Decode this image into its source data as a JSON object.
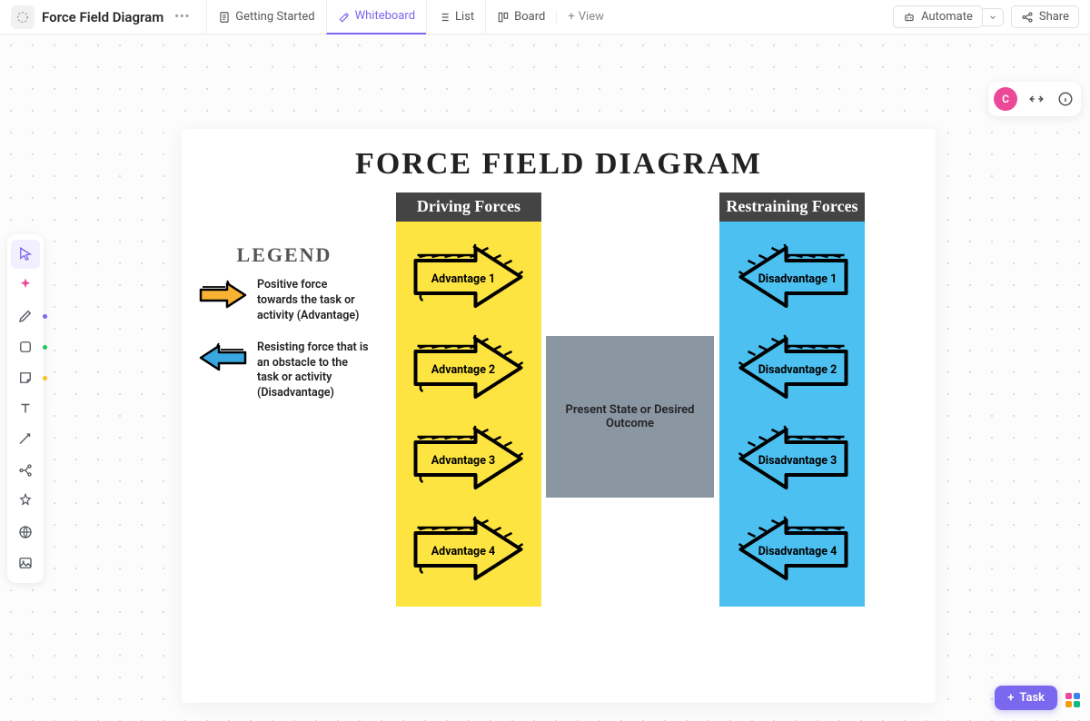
{
  "header": {
    "doc_title": "Force Field Diagram",
    "tabs": {
      "getting_started": "Getting Started",
      "whiteboard": "Whiteboard",
      "list": "List",
      "board": "Board"
    },
    "add_view": "View",
    "automate": "Automate",
    "share": "Share"
  },
  "right_float": {
    "avatar_letter": "C"
  },
  "diagram": {
    "title": "FORCE FIELD DIAGRAM",
    "legend": {
      "title": "LEGEND",
      "positive": "Positive force towards the task or activity (Advantage)",
      "negative": "Resisting force that is an obstacle to the task or activity (Disadvantage)"
    },
    "driving": {
      "header": "Driving Forces",
      "items": [
        "Advantage 1",
        "Advantage 2",
        "Advantage 3",
        "Advantage 4"
      ],
      "bg_color": "#fee440"
    },
    "restraining": {
      "header": "Restraining Forces",
      "items": [
        "Disadvantage 1",
        "Disadvantage 2",
        "Disadvantage 3",
        "Disadvantage 4"
      ],
      "bg_color": "#4cc0f0"
    },
    "center": "Present State or Desired Outcome",
    "colors": {
      "header_bg": "#444444",
      "center_bg": "#8b96a3",
      "arrow_yellow": "#f9b233",
      "arrow_blue": "#3aa8e0",
      "stroke": "#000000"
    }
  },
  "footer": {
    "task": "Task"
  },
  "tool_dots": [
    "#7b68ee",
    "#22c55e",
    "#fbbf24"
  ]
}
